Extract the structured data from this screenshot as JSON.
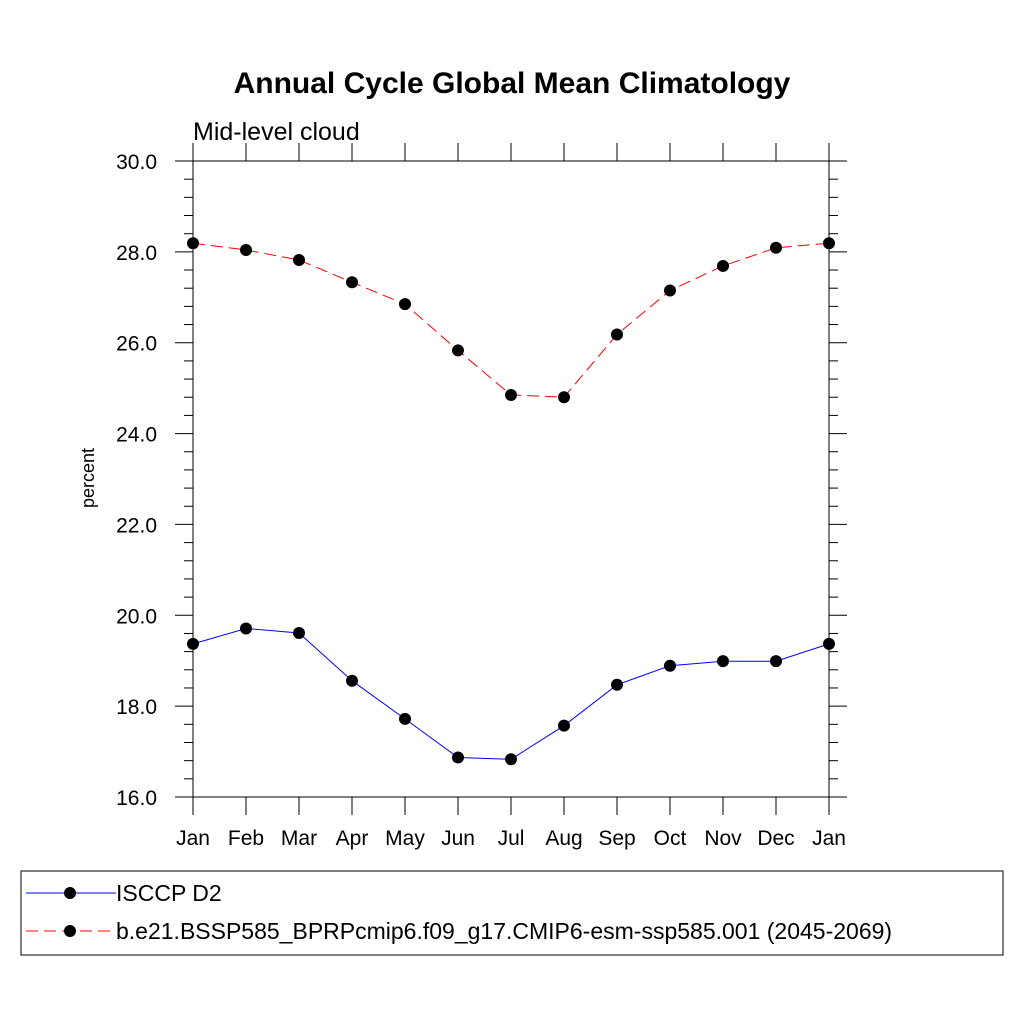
{
  "chart_data": {
    "type": "line",
    "title": "Annual Cycle Global Mean Climatology",
    "subtitle": "Mid-level cloud",
    "xlabel": "",
    "ylabel": "percent",
    "categories": [
      "Jan",
      "Feb",
      "Mar",
      "Apr",
      "May",
      "Jun",
      "Jul",
      "Aug",
      "Sep",
      "Oct",
      "Nov",
      "Dec",
      "Jan"
    ],
    "ylim": [
      16.0,
      30.0
    ],
    "yticks": [
      "16.0",
      "18.0",
      "20.0",
      "22.0",
      "24.0",
      "26.0",
      "28.0",
      "30.0"
    ],
    "grid": false,
    "legend_position": "bottom",
    "series": [
      {
        "name": "ISCCP D2",
        "color": "#0000ff",
        "dash": "solid",
        "values": [
          19.37,
          19.71,
          19.61,
          18.56,
          17.72,
          16.87,
          16.83,
          17.57,
          18.47,
          18.89,
          18.99,
          18.99,
          19.37
        ]
      },
      {
        "name": "b.e21.BSSP585_BPRPcmip6.f09_g17.CMIP6-esm-ssp585.001 (2045-2069)",
        "color": "#ff0000",
        "dash": "dashed",
        "values": [
          28.19,
          28.04,
          27.82,
          27.33,
          26.85,
          25.83,
          24.85,
          24.8,
          26.18,
          27.15,
          27.69,
          28.09,
          28.19
        ]
      }
    ]
  }
}
